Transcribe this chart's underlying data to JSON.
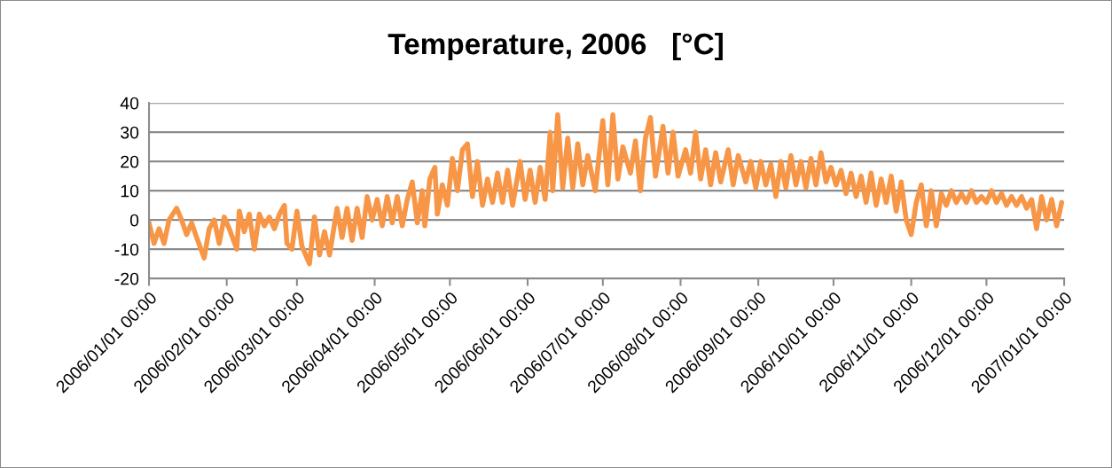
{
  "chart_data": {
    "type": "line",
    "title": "Temperature, 2006   [°C]",
    "color": "#f79646",
    "grid": "y",
    "xlim": [
      "2006-01-01",
      "2007-01-01"
    ],
    "ylim": [
      -20,
      40
    ],
    "yticks": [
      -20,
      -10,
      0,
      10,
      20,
      30,
      40
    ],
    "xticks": [
      {
        "value": "2006-01-01",
        "label": "2006/01/01 00:00"
      },
      {
        "value": "2006-02-01",
        "label": "2006/02/01 00:00"
      },
      {
        "value": "2006-03-01",
        "label": "2006/03/01 00:00"
      },
      {
        "value": "2006-04-01",
        "label": "2006/04/01 00:00"
      },
      {
        "value": "2006-05-01",
        "label": "2006/05/01 00:00"
      },
      {
        "value": "2006-06-01",
        "label": "2006/06/01 00:00"
      },
      {
        "value": "2006-07-01",
        "label": "2006/07/01 00:00"
      },
      {
        "value": "2006-08-01",
        "label": "2006/08/01 00:00"
      },
      {
        "value": "2006-09-01",
        "label": "2006/09/01 00:00"
      },
      {
        "value": "2006-10-01",
        "label": "2006/10/01 00:00"
      },
      {
        "value": "2006-11-01",
        "label": "2006/11/01 00:00"
      },
      {
        "value": "2006-12-01",
        "label": "2006/12/01 00:00"
      },
      {
        "value": "2007-01-01",
        "label": "2007/01/01 00:00"
      }
    ],
    "x": [
      "2006-01-01",
      "2006-01-03",
      "2006-01-05",
      "2006-01-07",
      "2006-01-09",
      "2006-01-12",
      "2006-01-14",
      "2006-01-16",
      "2006-01-18",
      "2006-01-20",
      "2006-01-23",
      "2006-01-25",
      "2006-01-27",
      "2006-01-29",
      "2006-01-31",
      "2006-02-02",
      "2006-02-05",
      "2006-02-06",
      "2006-02-08",
      "2006-02-10",
      "2006-02-12",
      "2006-02-14",
      "2006-02-16",
      "2006-02-18",
      "2006-02-20",
      "2006-02-22",
      "2006-02-24",
      "2006-02-25",
      "2006-02-27",
      "2006-03-01",
      "2006-03-03",
      "2006-03-06",
      "2006-03-08",
      "2006-03-10",
      "2006-03-12",
      "2006-03-14",
      "2006-03-17",
      "2006-03-19",
      "2006-03-21",
      "2006-03-23",
      "2006-03-25",
      "2006-03-27",
      "2006-03-29",
      "2006-03-31",
      "2006-04-02",
      "2006-04-04",
      "2006-04-06",
      "2006-04-08",
      "2006-04-10",
      "2006-04-12",
      "2006-04-14",
      "2006-04-16",
      "2006-04-18",
      "2006-04-20",
      "2006-04-21",
      "2006-04-23",
      "2006-04-25",
      "2006-04-26",
      "2006-04-28",
      "2006-04-30",
      "2006-05-02",
      "2006-05-04",
      "2006-05-06",
      "2006-05-08",
      "2006-05-10",
      "2006-05-12",
      "2006-05-14",
      "2006-05-16",
      "2006-05-18",
      "2006-05-20",
      "2006-05-22",
      "2006-05-24",
      "2006-05-26",
      "2006-05-29",
      "2006-05-31",
      "2006-06-02",
      "2006-06-04",
      "2006-06-06",
      "2006-06-08",
      "2006-06-10",
      "2006-06-11",
      "2006-06-13",
      "2006-06-15",
      "2006-06-17",
      "2006-06-19",
      "2006-06-21",
      "2006-06-23",
      "2006-06-25",
      "2006-06-28",
      "2006-07-01",
      "2006-07-03",
      "2006-07-05",
      "2006-07-07",
      "2006-07-09",
      "2006-07-12",
      "2006-07-14",
      "2006-07-16",
      "2006-07-18",
      "2006-07-20",
      "2006-07-22",
      "2006-07-25",
      "2006-07-27",
      "2006-07-29",
      "2006-07-31",
      "2006-08-03",
      "2006-08-05",
      "2006-08-07",
      "2006-08-09",
      "2006-08-11",
      "2006-08-13",
      "2006-08-15",
      "2006-08-17",
      "2006-08-20",
      "2006-08-22",
      "2006-08-24",
      "2006-08-27",
      "2006-08-29",
      "2006-08-31",
      "2006-09-02",
      "2006-09-04",
      "2006-09-06",
      "2006-09-08",
      "2006-09-10",
      "2006-09-12",
      "2006-09-14",
      "2006-09-16",
      "2006-09-18",
      "2006-09-20",
      "2006-09-22",
      "2006-09-24",
      "2006-09-26",
      "2006-09-28",
      "2006-09-30",
      "2006-10-02",
      "2006-10-04",
      "2006-10-06",
      "2006-10-08",
      "2006-10-10",
      "2006-10-12",
      "2006-10-14",
      "2006-10-16",
      "2006-10-18",
      "2006-10-20",
      "2006-10-22",
      "2006-10-24",
      "2006-10-26",
      "2006-10-28",
      "2006-10-30",
      "2006-11-01",
      "2006-11-03",
      "2006-11-05",
      "2006-11-07",
      "2006-11-09",
      "2006-11-11",
      "2006-11-13",
      "2006-11-15",
      "2006-11-17",
      "2006-11-19",
      "2006-11-21",
      "2006-11-23",
      "2006-11-25",
      "2006-11-27",
      "2006-11-29",
      "2006-12-01",
      "2006-12-03",
      "2006-12-05",
      "2006-12-07",
      "2006-12-09",
      "2006-12-11",
      "2006-12-13",
      "2006-12-15",
      "2006-12-17",
      "2006-12-19",
      "2006-12-21",
      "2006-12-23",
      "2006-12-25",
      "2006-12-27",
      "2006-12-29",
      "2006-12-31"
    ],
    "values": [
      -1,
      -8,
      -3,
      -8,
      0,
      4,
      0,
      -5,
      -1,
      -6,
      -13,
      -3,
      0,
      -8,
      1,
      -3,
      -10,
      3,
      -4,
      2,
      -10,
      2,
      -2,
      1,
      -3,
      2,
      5,
      -8,
      -10,
      3,
      -9,
      -15,
      1,
      -12,
      -4,
      -12,
      4,
      -6,
      4,
      -7,
      4,
      -6,
      8,
      0,
      7,
      -2,
      8,
      -1,
      8,
      -2,
      7,
      13,
      -1,
      10,
      -2,
      14,
      18,
      2,
      12,
      5,
      21,
      10,
      24,
      26,
      8,
      20,
      5,
      14,
      6,
      16,
      6,
      17,
      5,
      20,
      7,
      17,
      6,
      18,
      7,
      30,
      10,
      36,
      11,
      28,
      11,
      26,
      12,
      22,
      10,
      34,
      12,
      36,
      14,
      25,
      16,
      27,
      10,
      28,
      35,
      15,
      32,
      16,
      30,
      15,
      24,
      16,
      30,
      14,
      24,
      12,
      23,
      13,
      24,
      12,
      22,
      13,
      20,
      11,
      20,
      12,
      19,
      8,
      20,
      11,
      22,
      12,
      20,
      11,
      21,
      12,
      23,
      13,
      18,
      12,
      17,
      9,
      16,
      8,
      15,
      6,
      16,
      5,
      14,
      6,
      15,
      3,
      13,
      0,
      -5,
      6,
      12,
      -2,
      10,
      -2,
      9,
      5,
      10,
      6,
      9,
      6,
      10,
      6,
      8,
      6,
      10,
      6,
      9,
      5,
      8,
      5,
      8,
      4,
      7,
      -3,
      8,
      0,
      7,
      -2,
      6
    ]
  }
}
